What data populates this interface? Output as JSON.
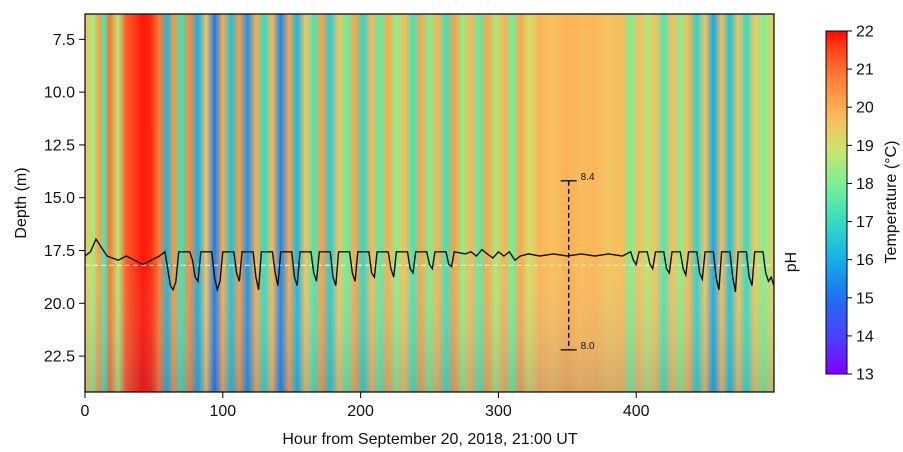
{
  "chart_data": {
    "type": "heatmap",
    "title": "",
    "xlabel": "Hour from September 20, 2018, 21:00 UT",
    "ylabel": "Depth (m)",
    "right_label": "pH",
    "xlim": [
      0,
      500
    ],
    "ylim": [
      24.2,
      6.3
    ],
    "x_ticks": [
      0,
      100,
      200,
      300,
      400
    ],
    "y_ticks": [
      7.5,
      10.0,
      12.5,
      15.0,
      17.5,
      20.0,
      22.5
    ],
    "colorbar": {
      "label": "Temperature (°C)",
      "range": [
        13,
        22
      ],
      "ticks": [
        13,
        14,
        15,
        16,
        17,
        18,
        19,
        20,
        21,
        22
      ],
      "colormap": "rainbow"
    },
    "temperature_by_hour": [
      [
        0,
        19.6
      ],
      [
        6,
        18.4
      ],
      [
        10,
        20.2
      ],
      [
        14,
        17.4
      ],
      [
        18,
        20.9
      ],
      [
        24,
        18.6
      ],
      [
        30,
        21.3
      ],
      [
        36,
        21.6
      ],
      [
        42,
        21.9
      ],
      [
        48,
        21.7
      ],
      [
        54,
        20.8
      ],
      [
        60,
        16.2
      ],
      [
        64,
        20.4
      ],
      [
        70,
        17.2
      ],
      [
        76,
        20.6
      ],
      [
        82,
        16.0
      ],
      [
        88,
        19.6
      ],
      [
        94,
        15.2
      ],
      [
        100,
        20.0
      ],
      [
        106,
        16.4
      ],
      [
        112,
        20.3
      ],
      [
        118,
        15.6
      ],
      [
        124,
        20.0
      ],
      [
        130,
        17.0
      ],
      [
        136,
        19.8
      ],
      [
        142,
        15.4
      ],
      [
        148,
        20.1
      ],
      [
        154,
        16.2
      ],
      [
        160,
        19.6
      ],
      [
        166,
        17.4
      ],
      [
        172,
        20.2
      ],
      [
        178,
        16.6
      ],
      [
        184,
        19.5
      ],
      [
        190,
        17.8
      ],
      [
        196,
        20.1
      ],
      [
        202,
        16.9
      ],
      [
        208,
        19.8
      ],
      [
        214,
        17.6
      ],
      [
        220,
        20.0
      ],
      [
        226,
        18.2
      ],
      [
        232,
        19.7
      ],
      [
        238,
        17.3
      ],
      [
        244,
        20.1
      ],
      [
        250,
        18.0
      ],
      [
        256,
        19.9
      ],
      [
        262,
        17.2
      ],
      [
        268,
        20.2
      ],
      [
        274,
        18.3
      ],
      [
        280,
        19.8
      ],
      [
        286,
        17.6
      ],
      [
        292,
        20.1
      ],
      [
        298,
        18.5
      ],
      [
        304,
        19.9
      ],
      [
        310,
        17.9
      ],
      [
        316,
        20.1
      ],
      [
        322,
        19.0
      ],
      [
        330,
        19.8
      ],
      [
        340,
        19.6
      ],
      [
        350,
        19.9
      ],
      [
        360,
        19.7
      ],
      [
        370,
        19.8
      ],
      [
        380,
        19.5
      ],
      [
        390,
        19.7
      ],
      [
        396,
        18.0
      ],
      [
        402,
        19.7
      ],
      [
        408,
        18.6
      ],
      [
        414,
        19.6
      ],
      [
        420,
        17.4
      ],
      [
        426,
        19.7
      ],
      [
        432,
        18.2
      ],
      [
        438,
        19.8
      ],
      [
        444,
        16.8
      ],
      [
        450,
        19.6
      ],
      [
        456,
        15.9
      ],
      [
        462,
        19.7
      ],
      [
        468,
        16.4
      ],
      [
        474,
        19.6
      ],
      [
        480,
        17.0
      ],
      [
        486,
        19.5
      ],
      [
        492,
        18.1
      ],
      [
        500,
        19.4
      ]
    ],
    "ph_series": {
      "name": "pH",
      "axis_depth_at_8_4": 14.2,
      "axis_depth_at_8_0": 22.2,
      "points": [
        [
          0,
          8.222
        ],
        [
          4,
          8.232
        ],
        [
          8,
          8.262
        ],
        [
          12,
          8.242
        ],
        [
          16,
          8.222
        ],
        [
          20,
          8.217
        ],
        [
          24,
          8.212
        ],
        [
          30,
          8.222
        ],
        [
          36,
          8.212
        ],
        [
          42,
          8.202
        ],
        [
          48,
          8.212
        ],
        [
          54,
          8.222
        ],
        [
          58,
          8.232
        ],
        [
          60,
          8.192
        ],
        [
          62,
          8.152
        ],
        [
          64,
          8.142
        ],
        [
          66,
          8.162
        ],
        [
          68,
          8.232
        ],
        [
          76,
          8.232
        ],
        [
          78,
          8.212
        ],
        [
          80,
          8.172
        ],
        [
          82,
          8.162
        ],
        [
          84,
          8.232
        ],
        [
          92,
          8.232
        ],
        [
          94,
          8.172
        ],
        [
          96,
          8.142
        ],
        [
          98,
          8.162
        ],
        [
          100,
          8.232
        ],
        [
          108,
          8.232
        ],
        [
          110,
          8.182
        ],
        [
          112,
          8.162
        ],
        [
          114,
          8.232
        ],
        [
          122,
          8.232
        ],
        [
          124,
          8.172
        ],
        [
          126,
          8.142
        ],
        [
          128,
          8.232
        ],
        [
          136,
          8.232
        ],
        [
          138,
          8.182
        ],
        [
          140,
          8.152
        ],
        [
          142,
          8.232
        ],
        [
          150,
          8.232
        ],
        [
          152,
          8.172
        ],
        [
          154,
          8.152
        ],
        [
          156,
          8.232
        ],
        [
          164,
          8.232
        ],
        [
          166,
          8.182
        ],
        [
          168,
          8.162
        ],
        [
          170,
          8.232
        ],
        [
          178,
          8.232
        ],
        [
          180,
          8.172
        ],
        [
          182,
          8.152
        ],
        [
          184,
          8.232
        ],
        [
          192,
          8.232
        ],
        [
          194,
          8.182
        ],
        [
          196,
          8.162
        ],
        [
          198,
          8.232
        ],
        [
          206,
          8.232
        ],
        [
          208,
          8.182
        ],
        [
          210,
          8.172
        ],
        [
          212,
          8.232
        ],
        [
          220,
          8.232
        ],
        [
          222,
          8.192
        ],
        [
          224,
          8.172
        ],
        [
          226,
          8.232
        ],
        [
          234,
          8.232
        ],
        [
          236,
          8.192
        ],
        [
          238,
          8.182
        ],
        [
          240,
          8.232
        ],
        [
          248,
          8.232
        ],
        [
          250,
          8.202
        ],
        [
          252,
          8.192
        ],
        [
          254,
          8.232
        ],
        [
          262,
          8.232
        ],
        [
          264,
          8.202
        ],
        [
          266,
          8.197
        ],
        [
          268,
          8.232
        ],
        [
          276,
          8.227
        ],
        [
          280,
          8.232
        ],
        [
          284,
          8.222
        ],
        [
          288,
          8.237
        ],
        [
          292,
          8.227
        ],
        [
          296,
          8.217
        ],
        [
          300,
          8.232
        ],
        [
          304,
          8.222
        ],
        [
          308,
          8.232
        ],
        [
          312,
          8.212
        ],
        [
          316,
          8.222
        ],
        [
          322,
          8.227
        ],
        [
          330,
          8.222
        ],
        [
          340,
          8.227
        ],
        [
          350,
          8.222
        ],
        [
          360,
          8.227
        ],
        [
          370,
          8.222
        ],
        [
          380,
          8.227
        ],
        [
          390,
          8.222
        ],
        [
          396,
          8.232
        ],
        [
          398,
          8.212
        ],
        [
          400,
          8.202
        ],
        [
          402,
          8.232
        ],
        [
          408,
          8.232
        ],
        [
          410,
          8.202
        ],
        [
          412,
          8.192
        ],
        [
          414,
          8.232
        ],
        [
          420,
          8.232
        ],
        [
          422,
          8.192
        ],
        [
          424,
          8.182
        ],
        [
          426,
          8.232
        ],
        [
          432,
          8.232
        ],
        [
          434,
          8.192
        ],
        [
          436,
          8.177
        ],
        [
          438,
          8.232
        ],
        [
          444,
          8.232
        ],
        [
          446,
          8.182
        ],
        [
          448,
          8.167
        ],
        [
          450,
          8.232
        ],
        [
          456,
          8.232
        ],
        [
          458,
          8.172
        ],
        [
          460,
          8.142
        ],
        [
          462,
          8.232
        ],
        [
          468,
          8.232
        ],
        [
          470,
          8.172
        ],
        [
          472,
          8.137
        ],
        [
          474,
          8.232
        ],
        [
          480,
          8.232
        ],
        [
          482,
          8.172
        ],
        [
          484,
          8.152
        ],
        [
          486,
          8.232
        ],
        [
          492,
          8.232
        ],
        [
          494,
          8.182
        ],
        [
          496,
          8.162
        ],
        [
          498,
          8.172
        ],
        [
          500,
          8.152
        ]
      ]
    },
    "reference_line": {
      "ph": 8.2,
      "style": "dashed",
      "color": "#f2f2f2"
    },
    "ph_scale_bar": {
      "x": 351,
      "top_label": "8.4",
      "bottom_label": "8.0",
      "top_ph": 8.4,
      "bottom_ph": 8.0
    }
  }
}
